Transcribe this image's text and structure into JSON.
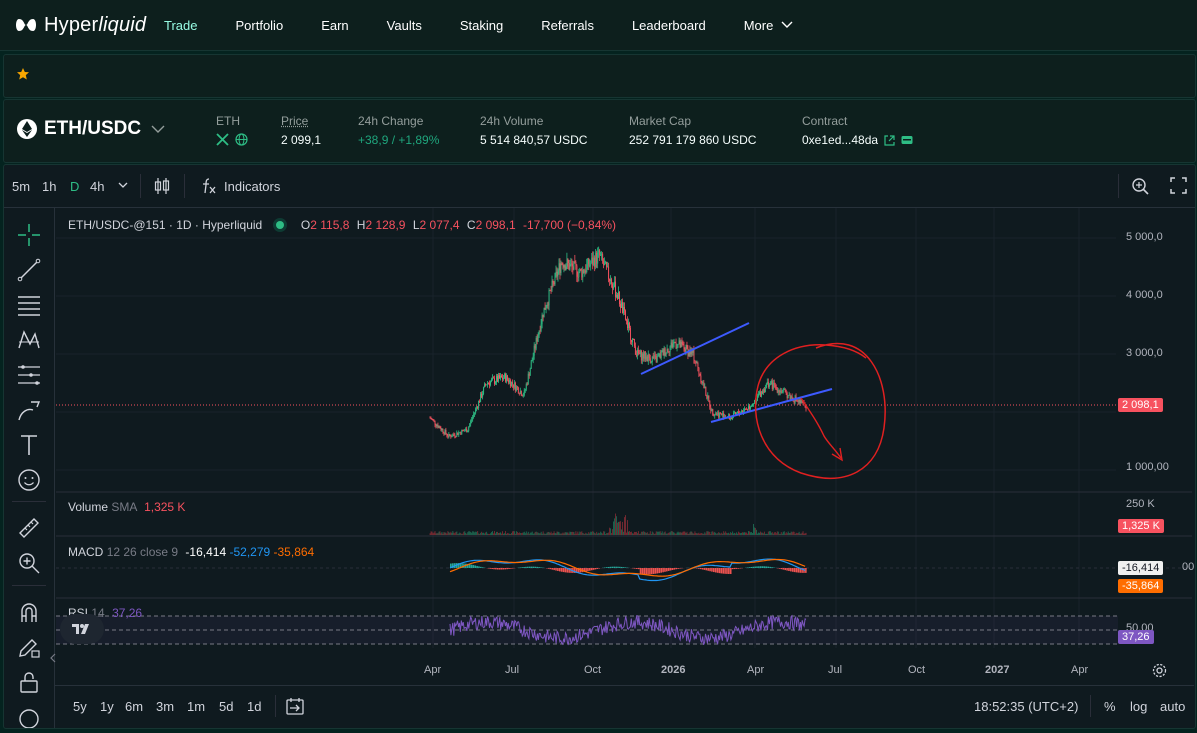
{
  "nav": {
    "logo": "Hyperliquid",
    "items": [
      "Trade",
      "Portfolio",
      "Earn",
      "Vaults",
      "Staking",
      "Referrals",
      "Leaderboard",
      "More"
    ]
  },
  "market": {
    "pair": "ETH/USDC",
    "asset": "ETH",
    "price_label": "Price",
    "price": "2 099,1",
    "change_label": "24h Change",
    "change": "+38,9 / +1,89%",
    "volume_label": "24h Volume",
    "volume": "5 514 840,57 USDC",
    "mcap_label": "Market Cap",
    "mcap": "252 791 179 860 USDC",
    "contract_label": "Contract",
    "contract": "0xe1ed...48da"
  },
  "toolbar": {
    "timeframes": [
      "5m",
      "1h",
      "D",
      "4h"
    ],
    "indicators": "Indicators"
  },
  "legend": {
    "title": "ETH/USDC-@151 · 1D · Hyperliquid",
    "o_label": "O",
    "o": "2 115,8",
    "h_label": "H",
    "h": "2 128,9",
    "l_label": "L",
    "l": "2 077,4",
    "c_label": "C",
    "c": "2 098,1",
    "chg": "-17,700 (−0,84%)",
    "volume_label": "Volume",
    "volume_sma": "SMA",
    "volume_val": "1,325 K",
    "macd_label": "MACD",
    "macd_params": "12 26 close 9",
    "macd_v1": "-16,414",
    "macd_v2": "-52,279",
    "macd_v3": "-35,864",
    "rsi_label": "RSI",
    "rsi_params": "14",
    "rsi_val": "37,26"
  },
  "axis": {
    "price_ticks": [
      "5 000,0",
      "4 000,0",
      "3 000,0",
      "1 000,00"
    ],
    "current_price": "2 098,1",
    "vol_tick": "250 K",
    "vol_tag": "1,325 K",
    "macd_tag1": "-16,414",
    "macd_tag2": "-35,864",
    "macd_edge": "00",
    "rsi_tick": "50,00",
    "rsi_tag": "37,26",
    "time_ticks": [
      "Apr",
      "Jul",
      "Oct",
      "2026",
      "Apr",
      "Jul",
      "Oct",
      "2027",
      "Apr"
    ]
  },
  "bottom": {
    "ranges": [
      "5y",
      "1y",
      "6m",
      "3m",
      "1m",
      "5d",
      "1d"
    ],
    "clock": "18:52:35 (UTC+2)",
    "percent": "%",
    "log": "log",
    "auto": "auto"
  },
  "colors": {
    "accent": "#97fce4",
    "up": "#2ebd85",
    "down": "#f7525f",
    "trendline": "#3d5afe",
    "annotation": "#e02020",
    "rsi": "#7e57c2"
  },
  "chart_data": {
    "type": "candlestick",
    "title": "ETH/USDC-@151 · 1D · Hyperliquid",
    "ylim": [
      1000,
      5000
    ],
    "x_ticks": [
      "Apr",
      "Jul",
      "Oct",
      "2026",
      "Apr",
      "Jul",
      "Oct",
      "2027",
      "Apr"
    ],
    "approx_close": [
      1900,
      1580,
      1700,
      2500,
      2600,
      2300,
      3700,
      4600,
      4400,
      4700,
      4000,
      3000,
      2900,
      3200,
      3000,
      2000,
      1900,
      2100,
      2500,
      2300,
      2098.1
    ]
  }
}
